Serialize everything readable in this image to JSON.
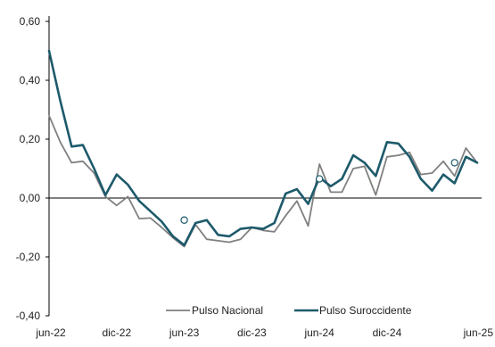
{
  "chart_data": {
    "type": "line",
    "title": "",
    "xlabel": "",
    "ylabel": "",
    "ylim": [
      -0.4,
      0.6
    ],
    "yticks": [
      0.6,
      0.4,
      0.2,
      0.0,
      -0.2,
      -0.4
    ],
    "ytick_labels": [
      "0,60",
      "0,40",
      "0,20",
      "0,00",
      "-0,20",
      "-0,40"
    ],
    "x_start": "jun-22",
    "x_end": "jun-25",
    "xtick_labels": [
      "jun-22",
      "dic-22",
      "jun-23",
      "dic-23",
      "jun-24",
      "dic-24",
      "jun-25"
    ],
    "xtick_month_index": [
      0,
      6,
      12,
      18,
      24,
      30,
      36
    ],
    "grid": false,
    "legend_position": "bottom",
    "series": [
      {
        "name": "Pulso Nacional",
        "color": "#808080",
        "values": [
          0.28,
          0.19,
          0.12,
          0.125,
          0.085,
          0.005,
          -0.025,
          0.005,
          -0.07,
          -0.068,
          -0.1,
          -0.135,
          -0.165,
          -0.09,
          -0.14,
          -0.145,
          -0.15,
          -0.14,
          -0.1,
          -0.11,
          -0.115,
          -0.06,
          -0.01,
          -0.095,
          0.115,
          0.02,
          0.02,
          0.1,
          0.108,
          0.01,
          0.14,
          0.145,
          0.155,
          0.08,
          0.085,
          0.125,
          0.075,
          0.17,
          0.12
        ]
      },
      {
        "name": "Pulso Suroccidente",
        "color": "#1d5a6b",
        "values": [
          0.5,
          0.33,
          0.175,
          0.18,
          0.1,
          0.01,
          0.08,
          0.045,
          -0.01,
          -0.045,
          -0.08,
          -0.13,
          -0.16,
          -0.085,
          -0.075,
          -0.125,
          -0.13,
          -0.105,
          -0.1,
          -0.105,
          -0.085,
          0.015,
          0.03,
          -0.02,
          0.07,
          0.04,
          0.065,
          0.145,
          0.12,
          0.075,
          0.19,
          0.185,
          0.14,
          0.065,
          0.025,
          0.08,
          0.05,
          0.14,
          0.12
        ]
      }
    ],
    "markers": [
      {
        "series": "Pulso Suroccidente",
        "x": "jun-23",
        "y": -0.075
      },
      {
        "series": "Pulso Suroccidente",
        "x": "jun-24",
        "y": 0.065
      },
      {
        "series": "Pulso Suroccidente",
        "x": "jun-25",
        "y": 0.12
      }
    ]
  }
}
